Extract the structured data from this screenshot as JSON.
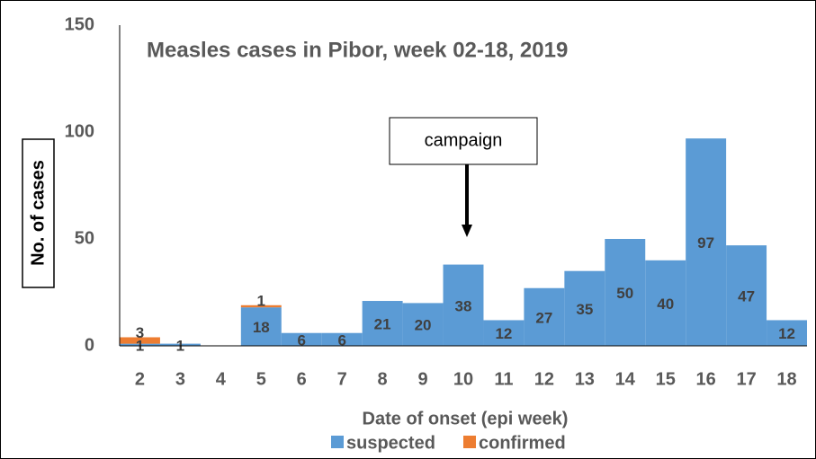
{
  "chart_data": {
    "type": "bar",
    "stacked": true,
    "title": "Measles cases in Pibor, week 02-18, 2019",
    "x_label": "Date of onset (epi week)",
    "y_label": "No. of cases",
    "annotation": "campaign",
    "categories": [
      "2",
      "3",
      "4",
      "5",
      "6",
      "7",
      "8",
      "9",
      "10",
      "11",
      "12",
      "13",
      "14",
      "15",
      "16",
      "17",
      "18"
    ],
    "series": [
      {
        "name": "suspected",
        "color": "#5b9bd5",
        "values": [
          1,
          1,
          null,
          18,
          6,
          6,
          21,
          20,
          38,
          12,
          27,
          35,
          50,
          40,
          97,
          47,
          12
        ]
      },
      {
        "name": "confirmed",
        "color": "#ed7d31",
        "values": [
          3,
          null,
          null,
          1,
          null,
          null,
          null,
          null,
          null,
          null,
          null,
          null,
          null,
          null,
          null,
          null,
          null
        ]
      }
    ],
    "ylim": [
      0,
      150
    ],
    "yticks": [
      0,
      50,
      100,
      150
    ],
    "grid": false,
    "legend": "bottom"
  }
}
